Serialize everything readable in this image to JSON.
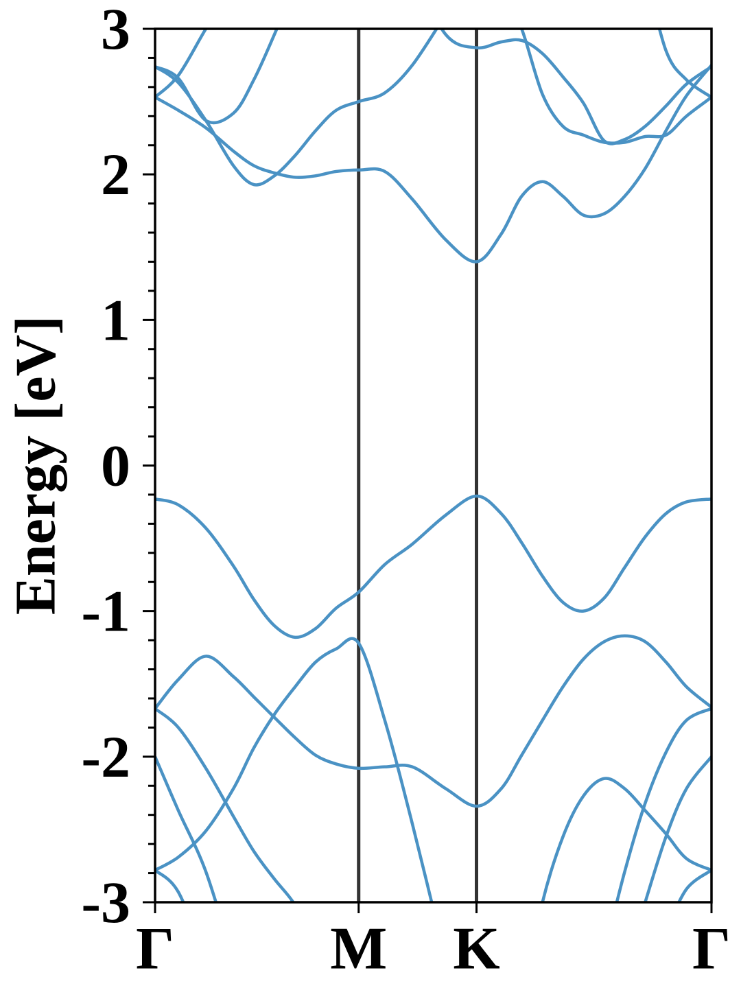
{
  "chart_data": {
    "type": "line",
    "ylabel": "Energy [eV]",
    "x": [
      0,
      0.066,
      0.144,
      0.222,
      0.28,
      0.338,
      0.397,
      0.455,
      0.513,
      0.577,
      0.651,
      0.729,
      0.824,
      0.911,
      0.981,
      1.039,
      1.098,
      1.156,
      1.214,
      1.273,
      1.331,
      1.389,
      1.448,
      1.506,
      1.577
    ],
    "xlim": [
      0,
      1.577
    ],
    "xticks": [
      {
        "value": 0,
        "label": "Γ"
      },
      {
        "value": 0.577,
        "label": "M"
      },
      {
        "value": 0.911,
        "label": "K"
      },
      {
        "value": 1.577,
        "label": "Γ"
      }
    ],
    "ylim": [
      -3,
      3
    ],
    "yticks": [
      -3,
      -2,
      -1,
      0,
      1,
      2,
      3
    ],
    "yminorticks": [
      -2.8,
      -2.6,
      -2.4,
      -2.2,
      -1.8,
      -1.6,
      -1.4,
      -1.2,
      -0.8,
      -0.6,
      -0.4,
      -0.2,
      0.2,
      0.4,
      0.6,
      0.8,
      1.2,
      1.4,
      1.6,
      1.8,
      2.2,
      2.4,
      2.6,
      2.8
    ],
    "color": "#4a92c4",
    "series": [
      {
        "values": [
          -0.23,
          -0.27,
          -0.43,
          -0.69,
          -0.92,
          -1.1,
          -1.18,
          -1.12,
          -0.98,
          -0.87,
          -0.68,
          -0.54,
          -0.34,
          -0.21,
          -0.33,
          -0.53,
          -0.76,
          -0.94,
          -1.0,
          -0.91,
          -0.7,
          -0.49,
          -0.33,
          -0.25,
          -0.23
        ]
      },
      {
        "values": [
          -1.67,
          -1.47,
          -1.31,
          -1.45,
          -1.59,
          -1.73,
          -1.87,
          -1.99,
          -2.05,
          -2.08,
          -2.07,
          -2.07,
          -2.22,
          -2.34,
          -2.22,
          -1.99,
          -1.75,
          -1.52,
          -1.33,
          -1.21,
          -1.17,
          -1.21,
          -1.35,
          -1.52,
          -1.66
        ]
      },
      {
        "values": [
          -1.67,
          -1.8,
          -2.08,
          -2.41,
          -2.65,
          -2.84,
          -3.02,
          -3.3,
          null,
          null,
          null,
          null,
          null,
          null,
          null,
          null,
          null,
          null,
          null,
          null,
          null,
          null,
          null,
          null,
          null
        ]
      },
      {
        "values": [
          -2.78,
          -2.69,
          -2.51,
          -2.22,
          -1.94,
          -1.71,
          -1.52,
          -1.35,
          -1.26,
          -1.22,
          -1.75,
          -2.46,
          -3.4,
          null,
          null,
          null,
          null,
          null,
          null,
          null,
          null,
          null,
          null,
          null,
          null
        ]
      },
      {
        "values": [
          -2.0,
          -2.37,
          -2.79,
          -3.4,
          null,
          null,
          null,
          null,
          null,
          null,
          null,
          null,
          null,
          null,
          null,
          null,
          null,
          null,
          null,
          null,
          null,
          null,
          null,
          null,
          null
        ]
      },
      {
        "values": [
          -2.78,
          -2.93,
          -3.4,
          null,
          null,
          null,
          null,
          null,
          null,
          null,
          null,
          null,
          null,
          null,
          null,
          null,
          null,
          null,
          null,
          null,
          null,
          null,
          null,
          null,
          null
        ]
      },
      {
        "values": [
          null,
          null,
          null,
          null,
          null,
          null,
          null,
          null,
          null,
          null,
          null,
          null,
          null,
          null,
          null,
          -3.7,
          -3.0,
          -2.55,
          -2.27,
          -2.15,
          -2.22,
          -2.37,
          -2.53,
          -2.7,
          -2.78
        ]
      },
      {
        "values": [
          null,
          null,
          null,
          null,
          null,
          null,
          null,
          null,
          null,
          null,
          null,
          null,
          null,
          null,
          null,
          null,
          null,
          null,
          null,
          -3.35,
          -2.79,
          -2.32,
          -1.97,
          -1.75,
          -1.67
        ]
      },
      {
        "values": [
          null,
          null,
          null,
          null,
          null,
          null,
          null,
          null,
          null,
          null,
          null,
          null,
          null,
          null,
          null,
          null,
          null,
          null,
          null,
          null,
          null,
          -3.0,
          -2.55,
          -2.22,
          -2.0
        ]
      },
      {
        "values": [
          null,
          null,
          null,
          null,
          null,
          null,
          null,
          null,
          null,
          null,
          null,
          null,
          null,
          null,
          null,
          null,
          null,
          null,
          null,
          null,
          null,
          null,
          -3.2,
          -2.91,
          -2.78
        ]
      },
      {
        "values": [
          2.74,
          2.63,
          2.37,
          2.06,
          1.93,
          1.99,
          2.13,
          2.3,
          2.44,
          2.5,
          2.56,
          2.75,
          3.1,
          null,
          null,
          null,
          null,
          null,
          null,
          null,
          null,
          null,
          null,
          null,
          null
        ]
      },
      {
        "values": [
          2.53,
          2.44,
          2.32,
          2.16,
          2.06,
          2.01,
          1.98,
          1.99,
          2.02,
          2.03,
          2.02,
          1.83,
          1.55,
          1.4,
          1.59,
          1.85,
          1.95,
          1.85,
          1.72,
          1.73,
          1.85,
          2.04,
          2.3,
          2.54,
          2.75
        ]
      },
      {
        "values": [
          2.53,
          2.68,
          3.0,
          3.3,
          null,
          null,
          null,
          null,
          null,
          null,
          null,
          null,
          null,
          null,
          null,
          null,
          null,
          null,
          null,
          null,
          null,
          null,
          null,
          null,
          null
        ]
      },
      {
        "values": [
          2.74,
          2.66,
          2.37,
          2.42,
          2.65,
          2.96,
          3.3,
          null,
          null,
          null,
          null,
          null,
          null,
          null,
          null,
          null,
          null,
          null,
          null,
          null,
          null,
          null,
          null,
          null,
          null
        ]
      },
      {
        "values": [
          null,
          null,
          null,
          null,
          null,
          null,
          null,
          null,
          null,
          null,
          null,
          3.4,
          2.96,
          2.87,
          2.91,
          2.92,
          2.83,
          2.67,
          2.49,
          2.23,
          2.24,
          2.33,
          2.47,
          2.62,
          2.74
        ]
      },
      {
        "values": [
          null,
          null,
          null,
          null,
          null,
          null,
          null,
          null,
          null,
          null,
          null,
          null,
          null,
          null,
          3.3,
          3.0,
          2.55,
          2.33,
          2.27,
          2.22,
          2.22,
          2.26,
          2.27,
          2.4,
          2.53
        ]
      },
      {
        "values": [
          null,
          null,
          null,
          null,
          null,
          null,
          null,
          null,
          null,
          null,
          null,
          null,
          null,
          null,
          null,
          null,
          null,
          null,
          null,
          null,
          null,
          3.4,
          2.85,
          2.65,
          2.53
        ]
      }
    ]
  }
}
